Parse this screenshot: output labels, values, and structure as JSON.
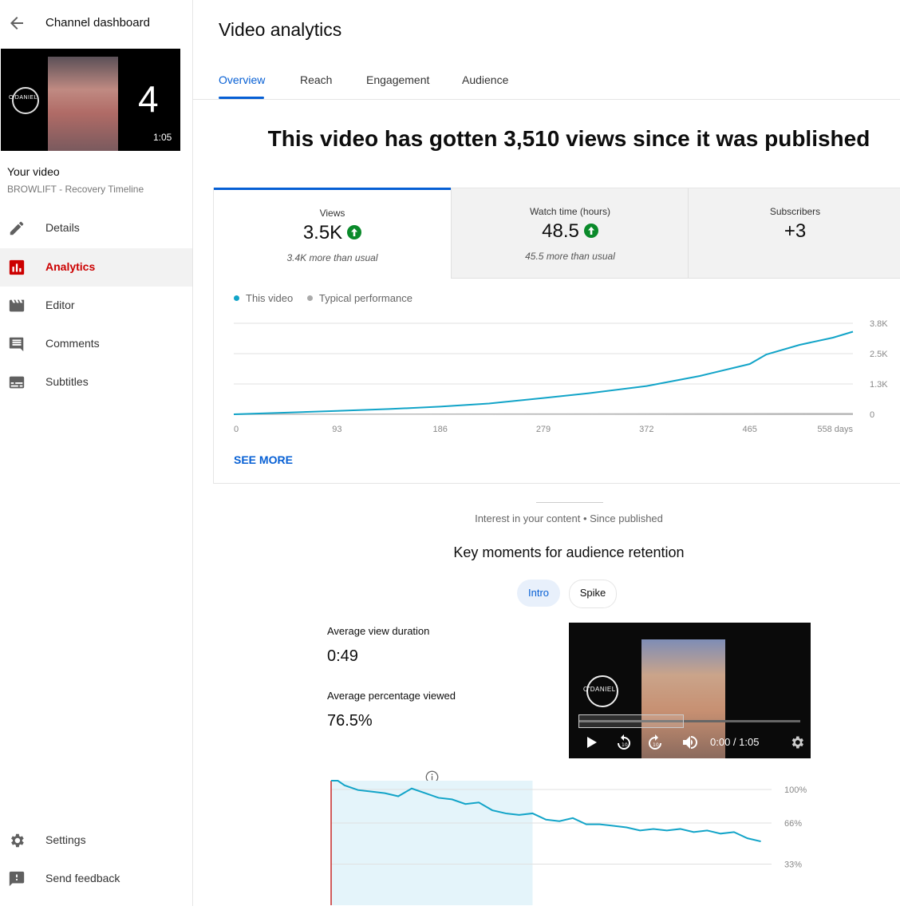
{
  "sidebar": {
    "title": "Channel dashboard",
    "thumbnail": {
      "overlay_number": "4",
      "duration": "1:05",
      "logo_text": "O'DANIEL"
    },
    "your_video_label": "Your video",
    "video_name": "BROWLIFT - Recovery Timeline",
    "items": [
      {
        "label": "Details",
        "icon": "pencil-icon"
      },
      {
        "label": "Analytics",
        "icon": "analytics-icon",
        "active": true
      },
      {
        "label": "Editor",
        "icon": "film-icon"
      },
      {
        "label": "Comments",
        "icon": "comment-icon"
      },
      {
        "label": "Subtitles",
        "icon": "subtitles-icon"
      }
    ],
    "bottom_items": [
      {
        "label": "Settings",
        "icon": "gear-icon"
      },
      {
        "label": "Send feedback",
        "icon": "feedback-icon"
      }
    ]
  },
  "main": {
    "title": "Video analytics",
    "tabs": [
      {
        "label": "Overview",
        "active": true
      },
      {
        "label": "Reach"
      },
      {
        "label": "Engagement"
      },
      {
        "label": "Audience"
      }
    ],
    "headline": "This video has gotten 3,510 views since it was published",
    "metrics": [
      {
        "label": "Views",
        "value": "3.5K",
        "trend": "up",
        "sub": "3.4K more than usual"
      },
      {
        "label": "Watch time (hours)",
        "value": "48.5",
        "trend": "up",
        "sub": "45.5 more than usual"
      },
      {
        "label": "Subscribers",
        "value": "+3"
      }
    ],
    "legend": {
      "this_video": "This video",
      "typical": "Typical performance"
    },
    "see_more": "SEE MORE",
    "interest_label": "Interest in your content • Since published",
    "key_moments_title": "Key moments for audience retention",
    "chips": {
      "intro": "Intro",
      "spike": "Spike"
    },
    "avg_view_duration_label": "Average view duration",
    "avg_view_duration": "0:49",
    "avg_pct_label": "Average percentage viewed",
    "avg_pct": "76.5%",
    "player": {
      "time": "0:00 / 1:05",
      "logo_text": "O'DANIEL"
    }
  },
  "colors": {
    "accent": "#065fd4",
    "line": "#12a4c8",
    "active_nav": "#cc0000",
    "up": "#0a8a2a"
  },
  "chart_data": [
    {
      "type": "line",
      "name": "views_chart",
      "x_ticks": [
        "0",
        "93",
        "186",
        "279",
        "372",
        "465",
        "558 days"
      ],
      "y_ticks": [
        "3.8K",
        "2.5K",
        "1.3K",
        "0"
      ],
      "ylim": [
        0,
        3800
      ],
      "xlim": [
        0,
        558
      ],
      "series": [
        {
          "name": "This video",
          "x": [
            0,
            40,
            93,
            140,
            186,
            230,
            279,
            320,
            372,
            420,
            465,
            480,
            510,
            540,
            558
          ],
          "y": [
            0,
            60,
            140,
            220,
            320,
            450,
            680,
            880,
            1180,
            1600,
            2100,
            2500,
            2900,
            3200,
            3450
          ]
        },
        {
          "name": "Typical performance",
          "x": [
            0,
            558
          ],
          "y": [
            0,
            30
          ]
        }
      ],
      "legend": "top-left",
      "grid": true
    },
    {
      "type": "line",
      "name": "retention_chart",
      "y_ticks": [
        "100%",
        "66%",
        "33%"
      ],
      "ylim": [
        0,
        100
      ],
      "xlim": [
        0,
        65
      ],
      "highlight": [
        0,
        30
      ],
      "series": [
        {
          "name": "retention",
          "x": [
            0,
            1,
            2,
            4,
            6,
            8,
            10,
            12,
            14,
            16,
            18,
            20,
            22,
            24,
            26,
            28,
            30,
            32,
            34,
            36,
            38,
            40,
            42,
            44,
            46,
            48,
            50,
            52,
            54,
            56,
            58,
            60,
            62,
            64
          ],
          "y": [
            100,
            100,
            97,
            94,
            93,
            92,
            90,
            95,
            92,
            89,
            88,
            85,
            86,
            81,
            79,
            78,
            79,
            75,
            74,
            76,
            72,
            72,
            71,
            70,
            68,
            69,
            68,
            69,
            67,
            68,
            66,
            67,
            63,
            61
          ]
        }
      ]
    }
  ]
}
